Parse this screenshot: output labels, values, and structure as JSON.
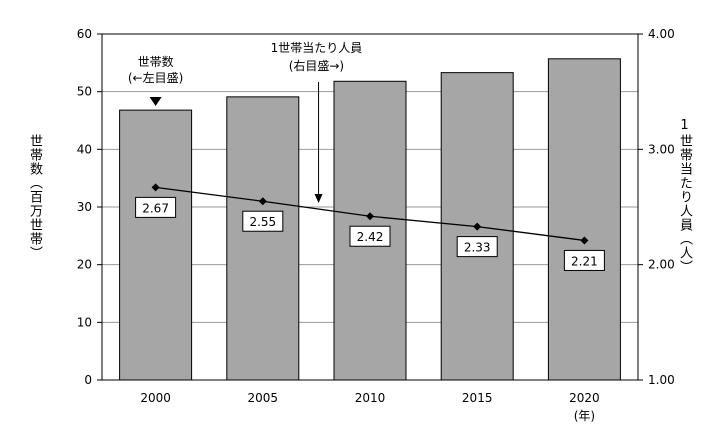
{
  "chart_data": {
    "type": "bar",
    "categories": [
      "2000",
      "2005",
      "2010",
      "2015",
      "2020"
    ],
    "x_unit": "(年)",
    "series": [
      {
        "type": "bar",
        "axis": "left",
        "values": [
          46.8,
          49.1,
          51.8,
          53.3,
          55.7
        ],
        "color": "#a6a6a6",
        "annotation_lines": [
          "世帯数",
          "(←左目盛)"
        ]
      },
      {
        "type": "line",
        "axis": "right",
        "values": [
          2.67,
          2.55,
          2.42,
          2.33,
          2.21
        ],
        "labels": [
          "2.67",
          "2.55",
          "2.42",
          "2.33",
          "2.21"
        ],
        "color": "#000000",
        "annotation_lines": [
          "1世帯当たり人員",
          "(右目盛→)"
        ]
      }
    ],
    "ylabel_left": "世帯数（百万世帯）",
    "ylabel_right": "1世帯当たり人員（人）",
    "ylim_left": [
      0,
      60
    ],
    "ylim_right": [
      1.0,
      4.0
    ],
    "yticks_left": [
      "0",
      "10",
      "20",
      "30",
      "40",
      "50",
      "60"
    ],
    "yticks_right": [
      "1.00",
      "2.00",
      "3.00",
      "4.00"
    ],
    "grid": true
  }
}
